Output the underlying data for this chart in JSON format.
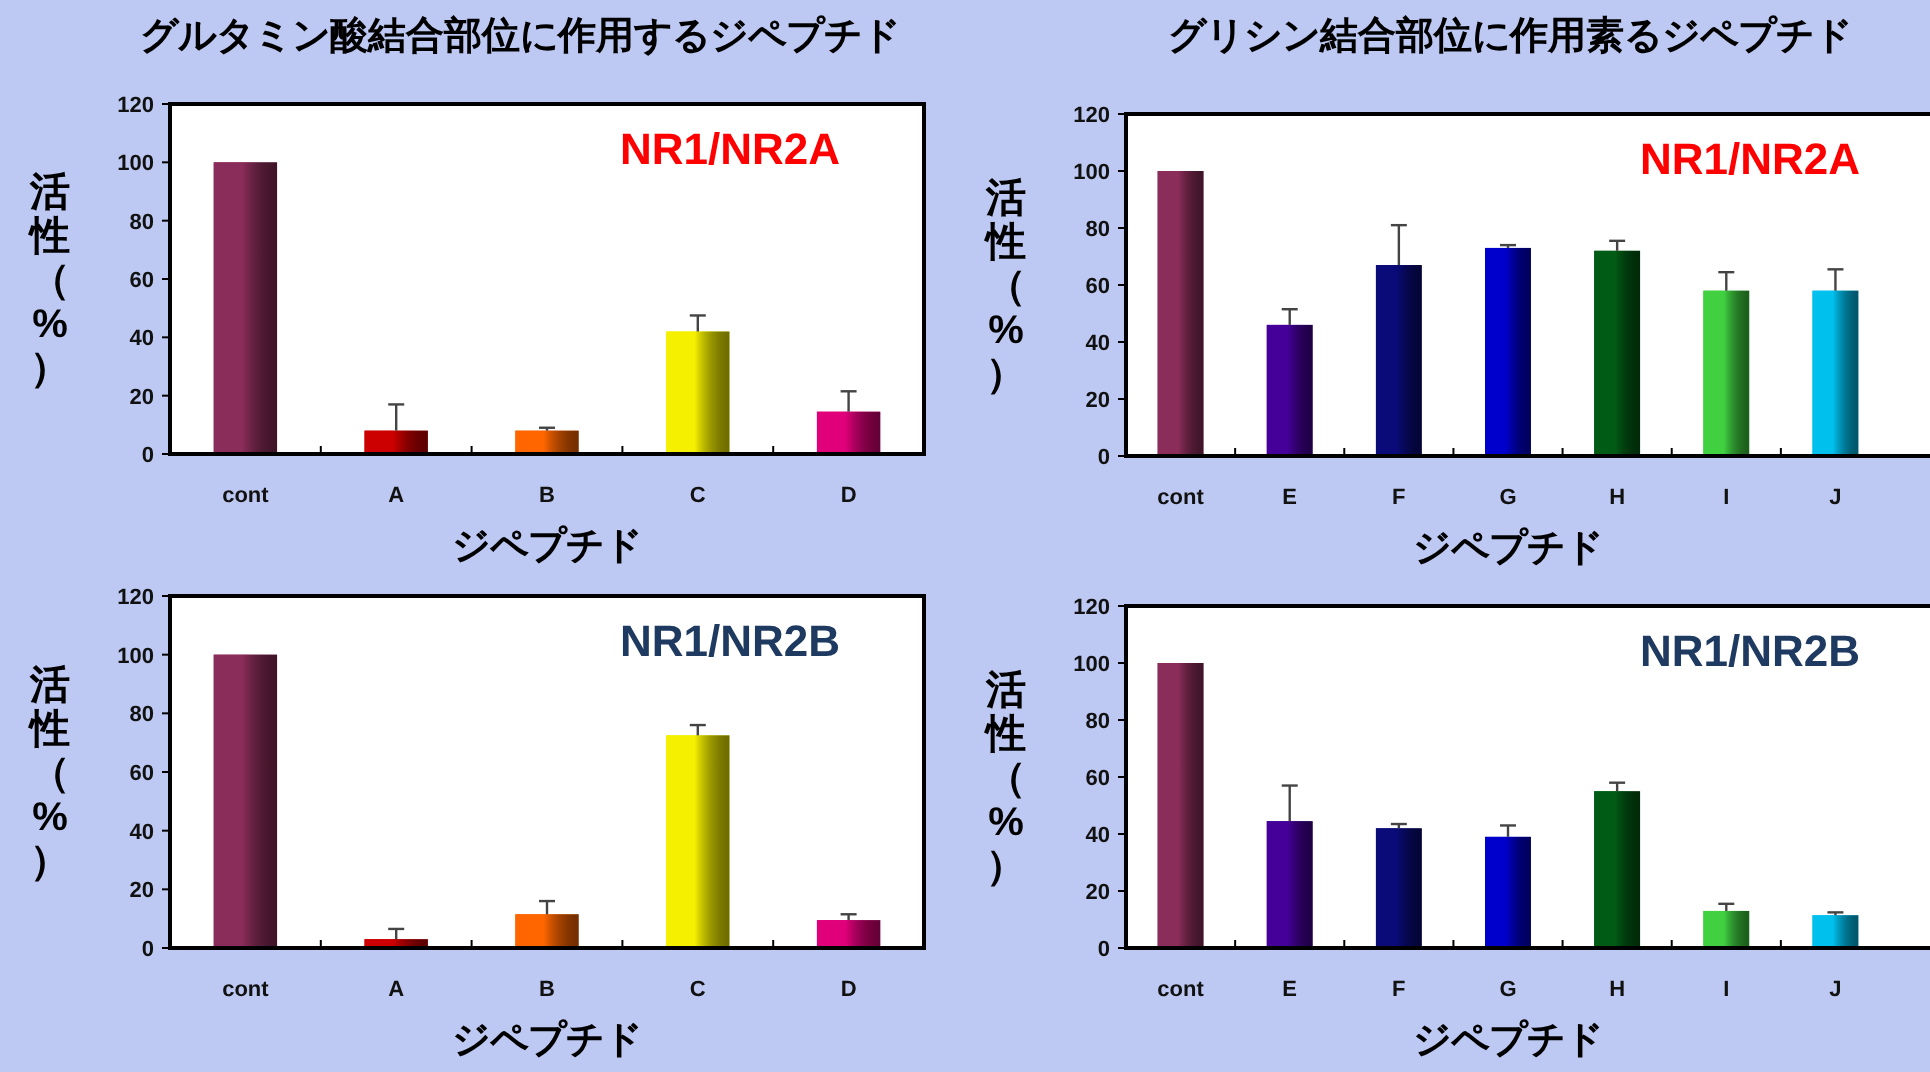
{
  "chart_data": [
    {
      "type": "bar",
      "title": "グルタミン酸結合部位に作用するジペプチド",
      "xlabel": "ジペプチド",
      "ylabel": "活性（%）",
      "annotations": [
        "NR1/NR2A"
      ],
      "categories": [
        "cont",
        "A",
        "B",
        "C",
        "D"
      ],
      "values": [
        100,
        8,
        8,
        42,
        14.5
      ],
      "colors": [
        "#8b2d5a",
        "#cc0000",
        "#ff6600",
        "#f5f000",
        "#e0007a"
      ],
      "errors": [
        null,
        [
          8,
          17
        ],
        [
          8,
          9
        ],
        [
          42,
          47.5
        ],
        [
          14.5,
          21.5
        ]
      ],
      "ylim": [
        0,
        120
      ],
      "yticks": [
        0,
        20,
        40,
        60,
        80,
        100,
        120
      ]
    },
    {
      "type": "bar",
      "title": "グリシン結合部位に作用素るジペプチド",
      "xlabel": "ジペプチド",
      "ylabel": "活性（%）",
      "annotations": [
        "NR1/NR2A"
      ],
      "categories": [
        "cont",
        "E",
        "F",
        "G",
        "H",
        "I",
        "J"
      ],
      "values": [
        100,
        46,
        67,
        73,
        72,
        58,
        58
      ],
      "colors": [
        "#8b2d5a",
        "#45009a",
        "#0a0a78",
        "#0000cc",
        "#005c14",
        "#40d040",
        "#00c0ee"
      ],
      "errors": [
        null,
        [
          46,
          51.5
        ],
        [
          67,
          81
        ],
        [
          73,
          74
        ],
        [
          72,
          75.5
        ],
        [
          58,
          64.5
        ],
        [
          58,
          65.5
        ]
      ],
      "ylim": [
        0,
        120
      ],
      "yticks": [
        0,
        20,
        40,
        60,
        80,
        100,
        120
      ]
    },
    {
      "type": "bar",
      "xlabel": "ジペプチド",
      "ylabel": "活性（%）",
      "annotations": [
        "NR1/NR2B"
      ],
      "categories": [
        "cont",
        "A",
        "B",
        "C",
        "D"
      ],
      "values": [
        100,
        3,
        11.5,
        72.5,
        9.5
      ],
      "colors": [
        "#8b2d5a",
        "#cc0000",
        "#ff6600",
        "#f5f000",
        "#e0007a"
      ],
      "errors": [
        null,
        [
          3,
          6.5
        ],
        [
          11.5,
          16
        ],
        [
          72.5,
          76
        ],
        [
          9.5,
          11.5
        ]
      ],
      "ylim": [
        0,
        120
      ],
      "yticks": [
        0,
        20,
        40,
        60,
        80,
        100,
        120
      ]
    },
    {
      "type": "bar",
      "xlabel": "ジペプチド",
      "ylabel": "活性（%）",
      "annotations": [
        "NR1/NR2B"
      ],
      "categories": [
        "cont",
        "E",
        "F",
        "G",
        "H",
        "I",
        "J"
      ],
      "values": [
        100,
        44.5,
        42,
        39,
        55,
        13,
        11.5
      ],
      "colors": [
        "#8b2d5a",
        "#45009a",
        "#0a0a78",
        "#0000cc",
        "#005c14",
        "#40d040",
        "#00c0ee"
      ],
      "errors": [
        null,
        [
          44.5,
          57
        ],
        [
          42,
          43.5
        ],
        [
          39,
          43
        ],
        [
          55,
          58
        ],
        [
          13,
          15.5
        ],
        [
          11.5,
          12.5
        ]
      ],
      "ylim": [
        0,
        120
      ],
      "yticks": [
        0,
        20,
        40,
        60,
        80,
        100,
        120
      ]
    }
  ]
}
